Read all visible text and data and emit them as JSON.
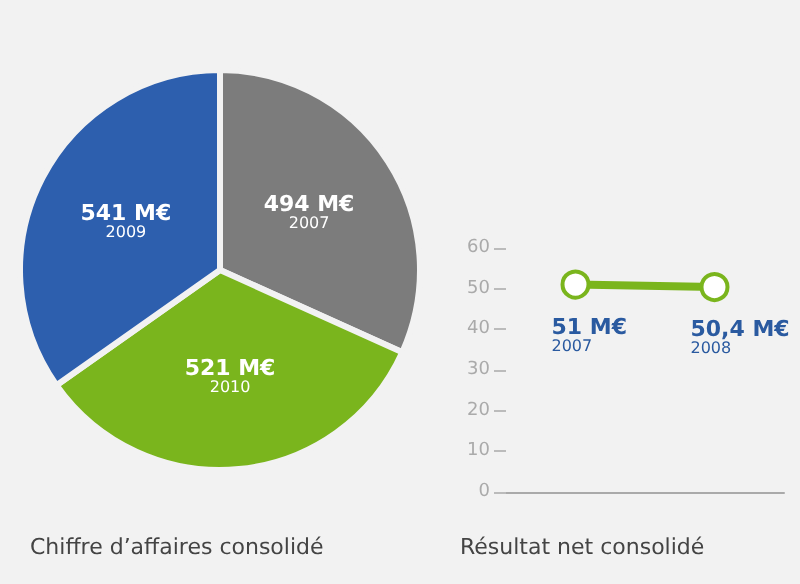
{
  "chart_data": [
    {
      "type": "pie",
      "title": "Chiffre d’affaires consolidé",
      "categories": [
        "2007",
        "2010",
        "2009"
      ],
      "values": [
        494,
        521,
        541
      ],
      "value_labels": [
        "494 M€",
        "521 M€",
        "541 M€"
      ],
      "colors": [
        "#7c7c7c",
        "#7ab51d",
        "#2d5fae"
      ],
      "legend": false
    },
    {
      "type": "line",
      "title": "Résultat net consolidé",
      "categories": [
        "2007",
        "2008"
      ],
      "series": [
        {
          "color": "#7ab51d",
          "values": [
            51,
            50.4
          ],
          "value_labels": [
            "51 M€",
            "50,4 M€"
          ]
        }
      ],
      "ylim": [
        0,
        60
      ],
      "yticks": [
        0,
        10,
        20,
        30,
        40,
        50,
        60
      ],
      "marker": "circle",
      "grid": false,
      "tick_labels": "y",
      "legend": false
    }
  ]
}
